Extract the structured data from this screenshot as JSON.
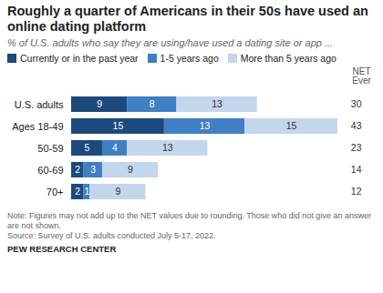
{
  "chart_data": {
    "type": "bar",
    "orientation": "horizontal",
    "stacked": true,
    "data_labels": true,
    "tick_labels": "y",
    "title": "Roughly a quarter of Americans in their 50s have used an online dating platform",
    "subtitle": "% of U.S. adults who say they are using/have used a dating site or app ...",
    "categories": [
      "U.S. adults",
      "Ages 18-49",
      "50-59",
      "60-69",
      "70+"
    ],
    "series": [
      {
        "name": "Currently or in the past year",
        "color": "#1c4a7c",
        "values": [
          9,
          15,
          5,
          2,
          2
        ]
      },
      {
        "name": "1-5 years ago",
        "color": "#3f7fc2",
        "values": [
          8,
          13,
          4,
          3,
          1
        ]
      },
      {
        "name": "More than 5 years ago",
        "color": "#c4d6ec",
        "values": [
          13,
          15,
          13,
          9,
          9
        ]
      }
    ],
    "net_title": "NET Ever",
    "net_values": [
      30,
      43,
      23,
      14,
      12
    ],
    "note": "Note: Figures may not add up to the NET values due to rounding. Those who did not give an answer are not shown.",
    "source": "Source: Survey of U.S. adults conducted July 5-17, 2022.",
    "credit": "PEW RESEARCH CENTER"
  }
}
